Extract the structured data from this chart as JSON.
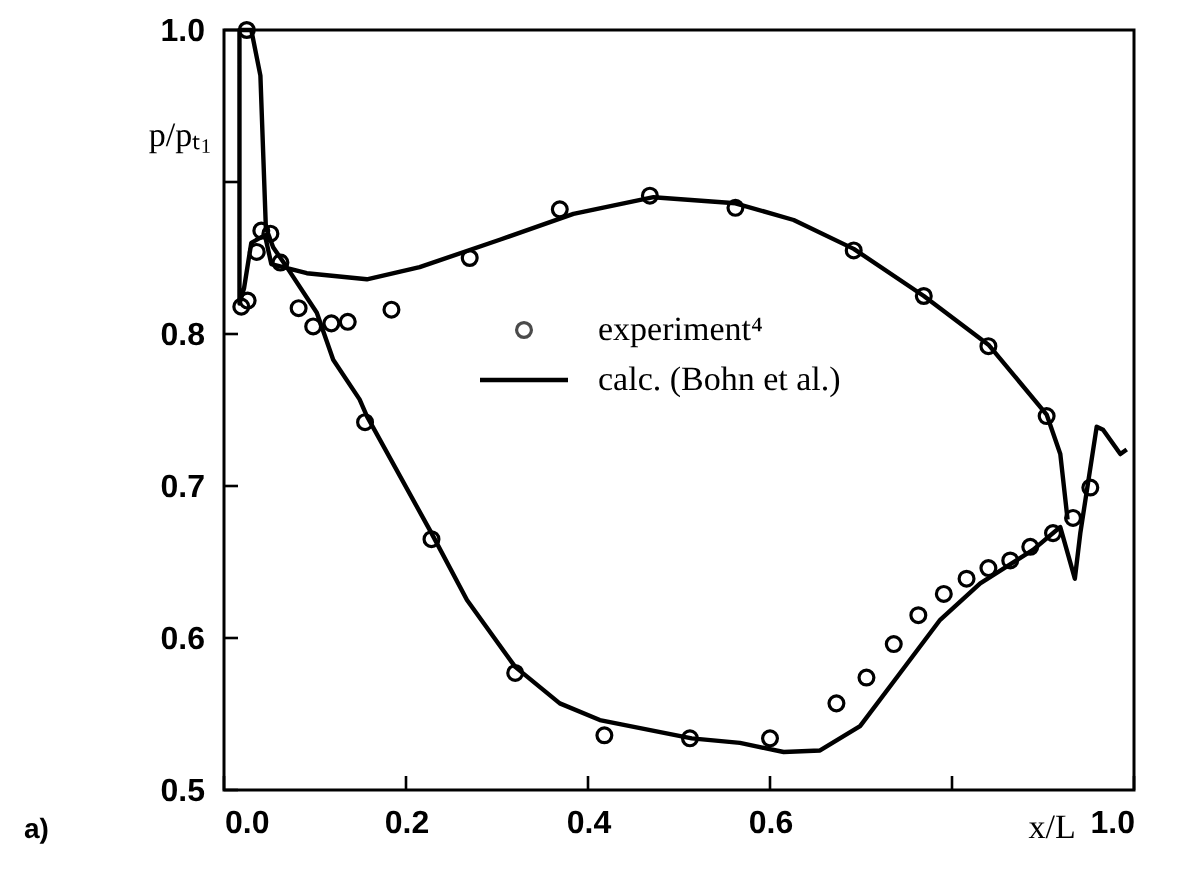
{
  "chart_data": {
    "type": "line",
    "xlabel": "x/L",
    "ylabel": "p/pₜ₁",
    "xlim": [
      0.0,
      1.0
    ],
    "ylim": [
      0.5,
      1.0
    ],
    "xticks": [
      {
        "value": 0,
        "label": "0.0"
      },
      0.2,
      0.4,
      0.6,
      {
        "value": 0.8,
        "label": null
      },
      {
        "value": 1,
        "label": "1.0"
      }
    ],
    "yticks": [
      0.5,
      0.6,
      0.7,
      0.8,
      {
        "value": 0.9,
        "label": null
      },
      {
        "value": 1,
        "label": "1.0"
      }
    ],
    "grid": false,
    "legend": "center",
    "annotations": [
      "a)"
    ],
    "series": [
      {
        "name": "experiment⁴",
        "type": "scatter",
        "marker": "circle",
        "color": "#000000",
        "x": [
          0.019,
          0.025,
          0.026,
          0.036,
          0.041,
          0.051,
          0.062,
          0.082,
          0.098,
          0.118,
          0.136,
          0.155,
          0.184,
          0.228,
          0.27,
          0.32,
          0.369,
          0.418,
          0.468,
          0.512,
          0.562,
          0.6,
          0.673,
          0.692,
          0.706,
          0.736,
          0.763,
          0.769,
          0.791,
          0.816,
          0.84,
          0.84,
          0.864,
          0.886,
          0.904,
          0.911,
          0.933,
          0.952
        ],
        "values": [
          0.818,
          1.0,
          0.822,
          0.854,
          0.868,
          0.866,
          0.847,
          0.817,
          0.805,
          0.807,
          0.808,
          0.742,
          0.816,
          0.665,
          0.85,
          0.577,
          0.882,
          0.536,
          0.891,
          0.534,
          0.883,
          0.534,
          0.557,
          0.855,
          0.574,
          0.596,
          0.615,
          0.825,
          0.629,
          0.639,
          0.792,
          0.646,
          0.651,
          0.66,
          0.746,
          0.669,
          0.679,
          0.699
        ]
      },
      {
        "name": "calc. (Bohn et al.)",
        "type": "line",
        "marker": "none",
        "line_style": "solid",
        "color": "#000000",
        "x": [
          0.992,
          0.985,
          0.966,
          0.959,
          0.941,
          0.935,
          0.919,
          0.889,
          0.831,
          0.787,
          0.743,
          0.699,
          0.655,
          0.615,
          0.567,
          0.514,
          0.413,
          0.369,
          0.32,
          0.267,
          0.228,
          0.157,
          0.149,
          0.12,
          0.102,
          0.069,
          0.054,
          0.046,
          0.04,
          0.03,
          0.017,
          0.017,
          0.022,
          0.03,
          0.045,
          0.052,
          0.091,
          0.157,
          0.215,
          0.303,
          0.384,
          0.472,
          0.562,
          0.626,
          0.692,
          0.769,
          0.84,
          0.904,
          0.919,
          0.927
        ],
        "values": [
          0.724,
          0.721,
          0.737,
          0.739,
          0.669,
          0.639,
          0.673,
          0.658,
          0.636,
          0.612,
          0.577,
          0.542,
          0.526,
          0.525,
          0.531,
          0.534,
          0.546,
          0.557,
          0.581,
          0.625,
          0.669,
          0.746,
          0.757,
          0.783,
          0.814,
          0.844,
          0.857,
          0.87,
          0.97,
          1.0,
          1.0,
          0.82,
          0.83,
          0.86,
          0.865,
          0.846,
          0.84,
          0.836,
          0.844,
          0.862,
          0.879,
          0.89,
          0.886,
          0.875,
          0.856,
          0.825,
          0.793,
          0.747,
          0.721,
          0.678
        ]
      }
    ]
  }
}
